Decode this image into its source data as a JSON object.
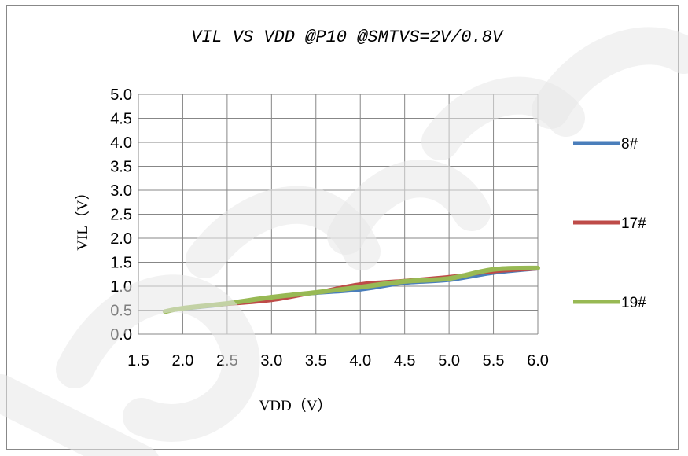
{
  "chart_data": {
    "type": "line",
    "title": "VIL VS VDD @P10 @SMTVS=2V/0.8V",
    "xlabel": "VDD（V）",
    "ylabel": "VIL（V）",
    "xlim": [
      1.5,
      6.0
    ],
    "ylim": [
      0.0,
      5.0
    ],
    "x_ticks": [
      "1.5",
      "2.0",
      "2.5",
      "3.0",
      "3.5",
      "4.0",
      "4.5",
      "5.0",
      "5.5",
      "6.0"
    ],
    "y_ticks": [
      "0.0",
      "0.5",
      "1.0",
      "1.5",
      "2.0",
      "2.5",
      "3.0",
      "3.5",
      "4.0",
      "4.5",
      "5.0"
    ],
    "grid": true,
    "legend_position": "right",
    "series": [
      {
        "name": "8#",
        "color": "#4a7ebb",
        "x": [
          1.8,
          2.0,
          2.5,
          3.0,
          3.5,
          4.0,
          4.5,
          5.0,
          5.5,
          6.0
        ],
        "y": [
          0.47,
          0.52,
          0.62,
          0.76,
          0.85,
          0.92,
          1.06,
          1.12,
          1.27,
          1.36
        ]
      },
      {
        "name": "17#",
        "color": "#be4b48",
        "x": [
          1.8,
          2.0,
          2.5,
          3.0,
          3.5,
          4.0,
          4.5,
          5.0,
          5.5,
          6.0
        ],
        "y": [
          0.48,
          0.53,
          0.62,
          0.7,
          0.87,
          1.05,
          1.12,
          1.2,
          1.3,
          1.36
        ]
      },
      {
        "name": "19#",
        "color": "#98b954",
        "x": [
          1.8,
          2.0,
          2.5,
          3.0,
          3.5,
          4.0,
          4.5,
          5.0,
          5.5,
          6.0
        ],
        "y": [
          0.47,
          0.54,
          0.64,
          0.77,
          0.87,
          0.98,
          1.1,
          1.16,
          1.35,
          1.38
        ]
      }
    ]
  },
  "watermark": {
    "color": "#e8e8e8"
  }
}
